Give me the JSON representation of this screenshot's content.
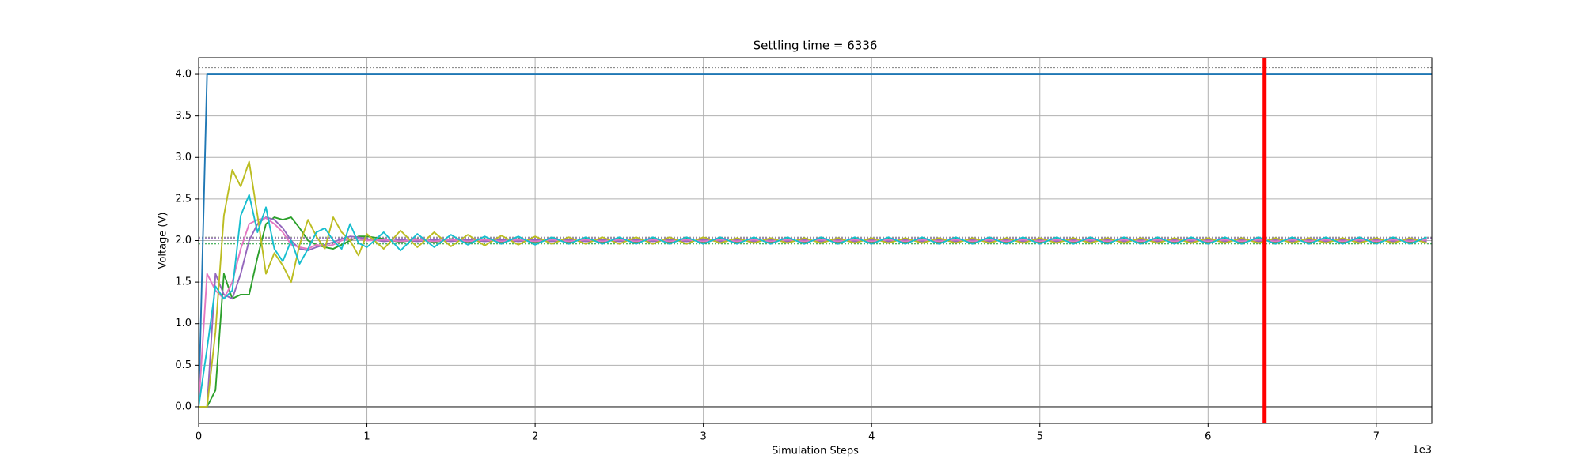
{
  "chart_data": {
    "type": "line",
    "title": "Settling time = 6336",
    "xlabel": "Simulation Steps",
    "ylabel": "Voltage (V)",
    "x_offset_label": "1e3",
    "xlim": [
      0,
      7330
    ],
    "ylim": [
      -0.2,
      4.2
    ],
    "xticks": [
      0,
      {
        "value": 1000,
        "label": "1"
      },
      {
        "value": 2000,
        "label": "2"
      },
      {
        "value": 3000,
        "label": "3"
      },
      {
        "value": 4000,
        "label": "4"
      },
      {
        "value": 5000,
        "label": "5"
      },
      {
        "value": 6000,
        "label": "6"
      },
      {
        "value": 7000,
        "label": "7"
      }
    ],
    "yticks": [
      {
        "value": 0,
        "label": "0.0"
      },
      0.5,
      {
        "value": 1,
        "label": "1.0"
      },
      1.5,
      {
        "value": 2,
        "label": "2.0"
      },
      2.5,
      {
        "value": 3,
        "label": "3.0"
      },
      3.5,
      {
        "value": 4,
        "label": "4.0"
      }
    ],
    "grid": true,
    "x": [
      0,
      50,
      100,
      150,
      200,
      250,
      300,
      350,
      400,
      450,
      500,
      550,
      600,
      650,
      700,
      750,
      800,
      850,
      900,
      950,
      1000,
      1100,
      1200,
      1300,
      1400,
      1500,
      1600,
      1700,
      1800,
      1900,
      2000,
      2100,
      2200,
      2300,
      2400,
      2500,
      2600,
      2700,
      2800,
      2900,
      3000,
      3100,
      3200,
      3300,
      3400,
      3500,
      3600,
      3700,
      3800,
      3900,
      4000,
      4100,
      4200,
      4300,
      4400,
      4500,
      4600,
      4700,
      4800,
      4900,
      5000,
      5100,
      5200,
      5300,
      5400,
      5500,
      5600,
      5700,
      5800,
      5900,
      6000,
      6100,
      6200,
      6300,
      6400,
      6500,
      6600,
      6700,
      6800,
      6900,
      7000,
      7100,
      7200,
      7300
    ],
    "series": [
      {
        "color": "#7f7f7f",
        "x": [
          0,
          7330
        ],
        "values": [
          0,
          0
        ]
      },
      {
        "color": "#1f77b4",
        "x": [
          0,
          50,
          7330
        ],
        "values": [
          0,
          4,
          4
        ]
      },
      {
        "color": "#2ca02c",
        "values": [
          0,
          0,
          0.2,
          1.6,
          1.3,
          1.35,
          1.35,
          1.8,
          2.2,
          2.28,
          2.25,
          2.28,
          2.15,
          2.0,
          1.95,
          1.92,
          1.9,
          1.95,
          2.0,
          2.05,
          2.05,
          2.02,
          1.98,
          2.02,
          1.98,
          2.02,
          1.98,
          2.02,
          1.98,
          2.02,
          1.98,
          2.02,
          1.98,
          2.02,
          1.98,
          2.02,
          1.98,
          2.02,
          1.98,
          2.02,
          1.98,
          2.02,
          1.98,
          2.02,
          1.98,
          2.02,
          1.98,
          2.02,
          1.98,
          2.02,
          1.98,
          2.02,
          1.98,
          2.02,
          1.98,
          2.02,
          1.98,
          2.02,
          1.98,
          2.02,
          1.98,
          2.02,
          1.98,
          2.02,
          1.98,
          2.02,
          1.98,
          2.02,
          1.98,
          2.02,
          1.98,
          2.02,
          1.98,
          2.02,
          1.98,
          2.02,
          1.98,
          2.02,
          1.98,
          2.02,
          1.98,
          2.02,
          1.98,
          2.02
        ]
      },
      {
        "color": "#9467bd",
        "values": [
          0,
          0,
          1.6,
          1.35,
          1.3,
          1.6,
          2.0,
          2.2,
          2.28,
          2.25,
          2.15,
          2.0,
          1.9,
          1.88,
          1.92,
          1.95,
          1.98,
          2.02,
          2.05,
          2.04,
          2.02,
          1.99,
          2.01,
          1.99,
          2.01,
          1.99,
          2.01,
          1.99,
          2.01,
          1.99,
          2.01,
          1.99,
          2.01,
          1.99,
          2.01,
          1.99,
          2.01,
          1.99,
          2.01,
          1.99,
          2.01,
          1.99,
          2.01,
          1.99,
          2.01,
          1.99,
          2.01,
          1.99,
          2.01,
          1.99,
          2.01,
          1.99,
          2.01,
          1.99,
          2.01,
          1.99,
          2.01,
          1.99,
          2.01,
          1.99,
          2.01,
          1.99,
          2.01,
          1.99,
          2.01,
          1.99,
          2.01,
          1.99,
          2.01,
          1.99,
          2.01,
          1.99,
          2.01,
          1.99,
          2.01,
          1.99,
          2.01,
          1.99,
          2.01,
          1.99,
          2.01,
          1.99,
          2.01,
          1.99
        ]
      },
      {
        "color": "#e377c2",
        "values": [
          0,
          1.6,
          1.4,
          1.3,
          1.5,
          1.9,
          2.2,
          2.25,
          2.27,
          2.2,
          2.1,
          1.95,
          1.92,
          1.9,
          1.95,
          1.93,
          1.95,
          2.0,
          2.02,
          2.02,
          2.0,
          2.01,
          1.99,
          2.01,
          1.99,
          2.01,
          1.99,
          2.01,
          1.99,
          2.01,
          1.99,
          2.01,
          1.99,
          2.01,
          1.99,
          2.01,
          1.99,
          2.01,
          1.99,
          2.01,
          1.99,
          2.01,
          1.99,
          2.01,
          1.99,
          2.01,
          1.99,
          2.01,
          1.99,
          2.01,
          1.99,
          2.01,
          1.99,
          2.01,
          1.99,
          2.01,
          1.99,
          2.01,
          1.99,
          2.01,
          1.99,
          2.01,
          1.99,
          2.01,
          1.99,
          2.01,
          1.99,
          2.01,
          1.99,
          2.01,
          1.99,
          2.01,
          1.99,
          2.01,
          1.99,
          2.01,
          1.99,
          2.01,
          1.99,
          2.01,
          1.99,
          2.01,
          1.99,
          2.01
        ]
      },
      {
        "color": "#bcbd22",
        "values": [
          0,
          0,
          0.9,
          2.3,
          2.85,
          2.65,
          2.95,
          2.3,
          1.6,
          1.85,
          1.7,
          1.5,
          1.95,
          2.25,
          2.05,
          1.9,
          2.28,
          2.1,
          2.0,
          1.82,
          2.08,
          1.9,
          2.12,
          1.92,
          2.1,
          1.93,
          2.07,
          1.94,
          2.06,
          1.95,
          2.05,
          1.96,
          2.04,
          1.96,
          2.04,
          1.96,
          2.04,
          1.96,
          2.04,
          1.96,
          2.04,
          1.97,
          2.03,
          1.97,
          2.03,
          1.97,
          2.03,
          1.97,
          2.03,
          1.97,
          2.03,
          1.97,
          2.03,
          1.97,
          2.03,
          1.97,
          2.03,
          1.97,
          2.03,
          1.97,
          2.03,
          1.97,
          2.03,
          1.97,
          2.03,
          1.97,
          2.03,
          1.97,
          2.03,
          1.97,
          2.03,
          1.97,
          2.03,
          1.97,
          2.03,
          1.97,
          2.03,
          1.97,
          2.03,
          1.97,
          2.03,
          1.97,
          2.03,
          1.97
        ]
      },
      {
        "color": "#17becf",
        "values": [
          0,
          0.7,
          1.45,
          1.3,
          1.4,
          2.3,
          2.55,
          2.1,
          2.4,
          1.9,
          1.75,
          2.0,
          1.72,
          1.9,
          2.1,
          2.15,
          2.0,
          1.9,
          2.2,
          1.97,
          1.92,
          2.1,
          1.88,
          2.08,
          1.92,
          2.07,
          1.95,
          2.05,
          1.96,
          2.05,
          1.95,
          2.04,
          1.96,
          2.04,
          1.96,
          2.04,
          1.96,
          2.04,
          1.96,
          2.04,
          1.96,
          2.04,
          1.96,
          2.04,
          1.96,
          2.04,
          1.96,
          2.04,
          1.96,
          2.04,
          1.96,
          2.04,
          1.96,
          2.04,
          1.96,
          2.04,
          1.96,
          2.04,
          1.96,
          2.04,
          1.96,
          2.04,
          1.96,
          2.04,
          1.96,
          2.04,
          1.96,
          2.04,
          1.96,
          2.04,
          1.96,
          2.04,
          1.96,
          2.04,
          1.96,
          2.04,
          1.96,
          2.04,
          1.96,
          2.04,
          1.96,
          2.04,
          1.96,
          2.04
        ]
      }
    ],
    "hlines": [
      {
        "y": 4.08,
        "color": "#7f7f7f"
      },
      {
        "y": 3.92,
        "color": "#1f77b4"
      },
      {
        "y": 2.04,
        "color": "#7f7f7f"
      },
      {
        "y": 1.96,
        "color": "#2ca02c"
      },
      {
        "y": 2.03,
        "color": "#9467bd"
      },
      {
        "y": 1.97,
        "color": "#17becf"
      }
    ],
    "vline": {
      "x": 6336,
      "color": "#ff0000"
    }
  }
}
